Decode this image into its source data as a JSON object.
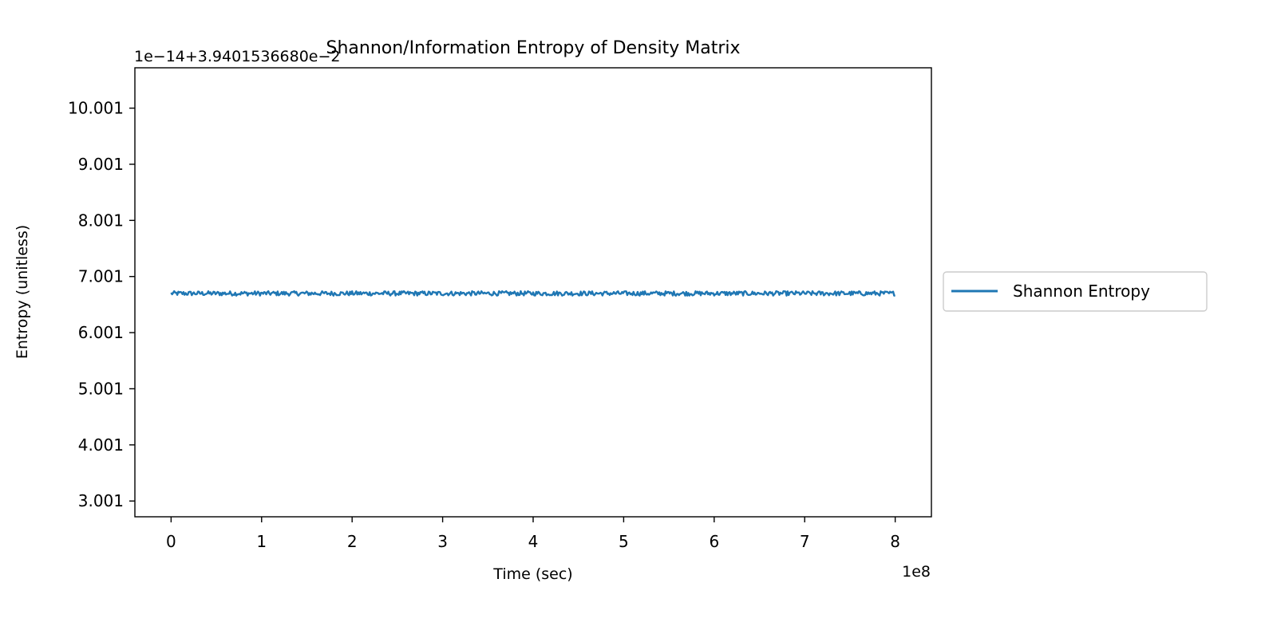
{
  "chart_data": {
    "type": "line",
    "title": "Shannon/Information Entropy of Density Matrix",
    "xlabel": "Time (sec)",
    "ylabel": "Entropy (unitless)",
    "x_offset_text": "1e8",
    "y_offset_text": "1e−14+3.9401536680e−2",
    "xlim": [
      -0.4,
      8.4
    ],
    "ylim": [
      2.72,
      10.72
    ],
    "x_ticks": [
      0,
      1,
      2,
      3,
      4,
      5,
      6,
      7,
      8
    ],
    "x_tick_labels": [
      "0",
      "1",
      "2",
      "3",
      "4",
      "5",
      "6",
      "7",
      "8"
    ],
    "y_ticks": [
      3.001,
      4.001,
      5.001,
      6.001,
      7.001,
      8.001,
      9.001,
      10.001
    ],
    "y_tick_labels": [
      "3.001",
      "4.001",
      "5.001",
      "6.001",
      "7.001",
      "8.001",
      "9.001",
      "10.001"
    ],
    "grid": false,
    "legend": {
      "placement": "outside-right",
      "entries": [
        "Shannon Entropy"
      ]
    },
    "series": [
      {
        "name": "Shannon Entropy",
        "color": "#1f77b4",
        "x_range": [
          0,
          8
        ],
        "mean": 6.7,
        "noise_amplitude": 0.04
      }
    ]
  }
}
